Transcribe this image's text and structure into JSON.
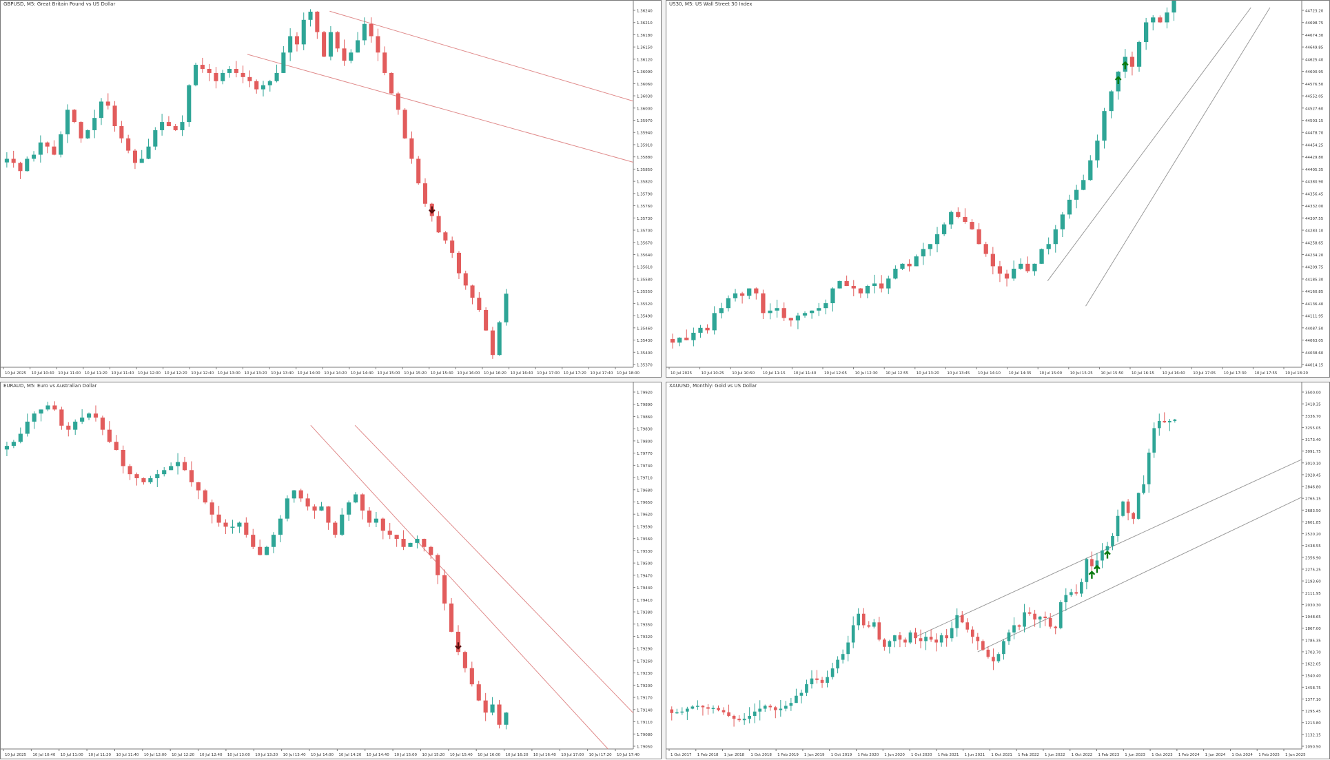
{
  "colors": {
    "bull": "#2ea596",
    "bear": "#e25c5c",
    "wick_bull": "#2ea596",
    "wick_bear": "#e25c5c",
    "channel_bear": "#e08b8b",
    "channel_bull": "#9a9a9a",
    "arrow_down": "#5a1010",
    "arrow_up": "#0a7a10",
    "axis_text": "#333333",
    "border": "#7a7a7a"
  },
  "chart_data": [
    {
      "type": "candlestick",
      "title": "GBPUSD, M5: Great Britain Pound vs US Dollar",
      "symbol": "GBPUSD",
      "timeframe": "M5",
      "ylim": [
        1.3536,
        1.3624
      ],
      "yticks": [
        "1.36240",
        "1.36210",
        "1.36180",
        "1.36150",
        "1.36120",
        "1.36090",
        "1.36060",
        "1.36030",
        "1.36000",
        "1.35970",
        "1.35940",
        "1.35910",
        "1.35880",
        "1.35850",
        "1.35820",
        "1.35790",
        "1.35760",
        "1.35730",
        "1.35700",
        "1.35670",
        "1.35640",
        "1.35610",
        "1.35580",
        "1.35550",
        "1.35520",
        "1.35490",
        "1.35460",
        "1.35430",
        "1.35400",
        "1.35370"
      ],
      "xticks": [
        "10 Jul 2025",
        "10 Jul 10:40",
        "10 Jul 11:00",
        "10 Jul 11:20",
        "10 Jul 11:40",
        "10 Jul 12:00",
        "10 Jul 12:20",
        "10 Jul 12:40",
        "10 Jul 13:00",
        "10 Jul 13:20",
        "10 Jul 13:40",
        "10 Jul 14:00",
        "10 Jul 14:20",
        "10 Jul 14:40",
        "10 Jul 15:00",
        "10 Jul 15:20",
        "10 Jul 15:40",
        "10 Jul 16:00",
        "10 Jul 16:20",
        "10 Jul 16:40",
        "10 Jul 17:00",
        "10 Jul 17:20",
        "10 Jul 17:40",
        "10 Jul 18:00"
      ],
      "trend": "down",
      "closes": [
        1.3587,
        1.3586,
        1.3584,
        1.3587,
        1.3588,
        1.3591,
        1.359,
        1.3588,
        1.3593,
        1.3599,
        1.3596,
        1.3592,
        1.3594,
        1.3597,
        1.3601,
        1.36,
        1.3595,
        1.3592,
        1.3589,
        1.3586,
        1.3587,
        1.359,
        1.3594,
        1.3596,
        1.3595,
        1.3594,
        1.3596,
        1.3605,
        1.361,
        1.3609,
        1.3608,
        1.3606,
        1.3608,
        1.3609,
        1.3608,
        1.3607,
        1.3606,
        1.3604,
        1.3605,
        1.3606,
        1.3608,
        1.3613,
        1.3617,
        1.3615,
        1.3621,
        1.3623,
        1.3618,
        1.3612,
        1.3618,
        1.3614,
        1.3611,
        1.3613,
        1.3616,
        1.362,
        1.3617,
        1.3613,
        1.3608,
        1.3603,
        1.3599,
        1.3592,
        1.3587,
        1.3581,
        1.3576,
        1.3573,
        1.3569,
        1.3567,
        1.3564,
        1.3559,
        1.3556,
        1.3553,
        1.355,
        1.3545,
        1.3539,
        1.3547,
        1.3554
      ],
      "channel": {
        "upper": [
          [
            0.52,
            0.01
          ],
          [
            1.0,
            0.26
          ]
        ],
        "lower": [
          [
            0.39,
            0.13
          ],
          [
            1.0,
            0.43
          ]
        ]
      },
      "arrows": [
        {
          "type": "down",
          "index": 63
        }
      ]
    },
    {
      "type": "candlestick",
      "title": "US30, M5: US Wall Street 30 Index",
      "symbol": "US30",
      "timeframe": "M5",
      "ylim": [
        44000,
        44730
      ],
      "yticks": [
        "44723.20",
        "44698.75",
        "44674.30",
        "44649.85",
        "44625.40",
        "44600.95",
        "44576.50",
        "44552.05",
        "44527.60",
        "44503.15",
        "44478.70",
        "44454.25",
        "44429.80",
        "44405.35",
        "44380.90",
        "44356.45",
        "44332.00",
        "44307.55",
        "44283.10",
        "44258.65",
        "44234.20",
        "44209.75",
        "44185.30",
        "44160.85",
        "44136.40",
        "44111.95",
        "44087.50",
        "44063.05",
        "44038.60",
        "44014.15"
      ],
      "xticks": [
        "10 Jul 2025",
        "10 Jul 10:25",
        "10 Jul 10:50",
        "10 Jul 11:15",
        "10 Jul 11:40",
        "10 Jul 12:05",
        "10 Jul 12:30",
        "10 Jul 12:55",
        "10 Jul 13:20",
        "10 Jul 13:45",
        "10 Jul 14:10",
        "10 Jul 14:35",
        "10 Jul 15:00",
        "10 Jul 15:25",
        "10 Jul 15:50",
        "10 Jul 16:15",
        "10 Jul 16:40",
        "10 Jul 17:05",
        "10 Jul 17:30",
        "10 Jul 17:55",
        "10 Jul 18:20"
      ],
      "trend": "up",
      "closes": [
        44050,
        44060,
        44055,
        44070,
        44080,
        44075,
        44110,
        44120,
        44140,
        44150,
        44145,
        44160,
        44150,
        44110,
        44115,
        44120,
        44100,
        44095,
        44105,
        44110,
        44115,
        44120,
        44130,
        44160,
        44175,
        44165,
        44160,
        44150,
        44165,
        44170,
        44160,
        44180,
        44200,
        44210,
        44205,
        44225,
        44240,
        44250,
        44270,
        44290,
        44315,
        44305,
        44295,
        44280,
        44250,
        44230,
        44205,
        44190,
        44180,
        44200,
        44210,
        44195,
        44210,
        44240,
        44250,
        44280,
        44310,
        44340,
        44360,
        44380,
        44420,
        44460,
        44520,
        44560,
        44600,
        44630,
        44610,
        44660,
        44700,
        44710,
        44700,
        44720,
        44745
      ],
      "channel": {
        "upper": [
          [
            0.6,
            0.76
          ],
          [
            0.92,
            0.0
          ]
        ],
        "lower": [
          [
            0.66,
            0.83
          ],
          [
            0.95,
            0.0
          ]
        ]
      },
      "arrows": [
        {
          "type": "up",
          "index": 64
        },
        {
          "type": "up",
          "index": 65
        }
      ]
    },
    {
      "type": "candlestick",
      "title": "EURAUD, M5: Euro vs Australian Dollar",
      "symbol": "EURAUD",
      "timeframe": "M5",
      "ylim": [
        1.7904,
        1.7993
      ],
      "yticks": [
        "1.79920",
        "1.79890",
        "1.79860",
        "1.79830",
        "1.79800",
        "1.79770",
        "1.79740",
        "1.79710",
        "1.79680",
        "1.79650",
        "1.79620",
        "1.79590",
        "1.79560",
        "1.79530",
        "1.79500",
        "1.79470",
        "1.79440",
        "1.79410",
        "1.79380",
        "1.79350",
        "1.79320",
        "1.79290",
        "1.79260",
        "1.79230",
        "1.79200",
        "1.79170",
        "1.79140",
        "1.79110",
        "1.79080",
        "1.79050"
      ],
      "xticks": [
        "10 Jul 2025",
        "10 Jul 10:40",
        "10 Jul 11:00",
        "10 Jul 11:20",
        "10 Jul 11:40",
        "10 Jul 12:00",
        "10 Jul 12:20",
        "10 Jul 12:40",
        "10 Jul 13:00",
        "10 Jul 13:20",
        "10 Jul 13:40",
        "10 Jul 14:00",
        "10 Jul 14:20",
        "10 Jul 14:40",
        "10 Jul 15:00",
        "10 Jul 15:20",
        "10 Jul 15:40",
        "10 Jul 16:00",
        "10 Jul 16:20",
        "10 Jul 16:40",
        "10 Jul 17:00",
        "10 Jul 17:20",
        "10 Jul 17:40"
      ],
      "trend": "down",
      "closes": [
        1.7979,
        1.798,
        1.7982,
        1.7985,
        1.7987,
        1.7988,
        1.7989,
        1.7988,
        1.7984,
        1.7983,
        1.7985,
        1.7986,
        1.7987,
        1.7986,
        1.7983,
        1.798,
        1.7978,
        1.7974,
        1.7972,
        1.7971,
        1.797,
        1.7971,
        1.7972,
        1.7973,
        1.7974,
        1.7975,
        1.7973,
        1.797,
        1.7968,
        1.7965,
        1.7962,
        1.796,
        1.7959,
        1.7959,
        1.796,
        1.7957,
        1.7954,
        1.7952,
        1.7954,
        1.7957,
        1.7961,
        1.7966,
        1.7968,
        1.7966,
        1.7964,
        1.7963,
        1.7964,
        1.796,
        1.7957,
        1.7962,
        1.7965,
        1.7967,
        1.7963,
        1.796,
        1.7961,
        1.7958,
        1.7957,
        1.7956,
        1.7954,
        1.7955,
        1.7956,
        1.7954,
        1.7952,
        1.7947,
        1.794,
        1.7933,
        1.7928,
        1.7924,
        1.792,
        1.7916,
        1.7913,
        1.7915,
        1.791,
        1.7913
      ],
      "channel": {
        "upper": [
          [
            0.56,
            0.1
          ],
          [
            1.0,
            0.9
          ]
        ],
        "lower": [
          [
            0.49,
            0.1
          ],
          [
            0.96,
            1.0
          ]
        ]
      },
      "arrows": [
        {
          "type": "down",
          "index": 66
        }
      ]
    },
    {
      "type": "candlestick",
      "title": "XAUUSD, Monthly: Gold vs US Dollar",
      "symbol": "XAUUSD",
      "timeframe": "Monthly",
      "ylim": [
        1020,
        3520
      ],
      "yticks": [
        "3500.00",
        "3418.35",
        "3336.70",
        "3255.05",
        "3173.40",
        "3091.75",
        "3010.10",
        "2928.45",
        "2846.80",
        "2765.15",
        "2683.50",
        "2601.85",
        "2520.20",
        "2438.55",
        "2356.90",
        "2275.25",
        "2193.60",
        "2111.95",
        "2030.30",
        "1948.65",
        "1867.00",
        "1785.35",
        "1703.70",
        "1622.05",
        "1540.40",
        "1458.75",
        "1377.10",
        "1295.45",
        "1213.80",
        "1132.15",
        "1050.50"
      ],
      "xticks": [
        "1 Oct 2017",
        "1 Feb 2018",
        "1 Jun 2018",
        "1 Oct 2018",
        "1 Feb 2019",
        "1 Jun 2019",
        "1 Oct 2019",
        "1 Feb 2020",
        "1 Jun 2020",
        "1 Oct 2020",
        "1 Feb 2021",
        "1 Jun 2021",
        "1 Oct 2021",
        "1 Feb 2022",
        "1 Jun 2022",
        "1 Oct 2022",
        "1 Feb 2023",
        "1 Jun 2023",
        "1 Oct 2023",
        "1 Feb 2024",
        "1 Jun 2024",
        "1 Oct 2024",
        "1 Feb 2025",
        "1 Jun 2025"
      ],
      "trend": "up",
      "closes": [
        1270,
        1275,
        1280,
        1300,
        1315,
        1320,
        1310,
        1300,
        1305,
        1290,
        1275,
        1250,
        1230,
        1220,
        1230,
        1250,
        1280,
        1300,
        1320,
        1310,
        1290,
        1300,
        1320,
        1340,
        1390,
        1410,
        1470,
        1510,
        1500,
        1480,
        1520,
        1580,
        1640,
        1680,
        1760,
        1880,
        1960,
        1880,
        1870,
        1900,
        1780,
        1730,
        1770,
        1810,
        1780,
        1760,
        1830,
        1790,
        1770,
        1800,
        1780,
        1760,
        1810,
        1790,
        1860,
        1950,
        1900,
        1850,
        1800,
        1770,
        1710,
        1660,
        1630,
        1680,
        1770,
        1830,
        1880,
        1870,
        1970,
        1960,
        1920,
        1940,
        1930,
        1870,
        1860,
        2040,
        2090,
        2110,
        2100,
        2180,
        2340,
        2290,
        2330,
        2400,
        2430,
        2500,
        2640,
        2740,
        2660,
        2620,
        2800,
        2860,
        3080,
        3250,
        3300,
        3290,
        3300,
        3310
      ],
      "channel": {
        "upper": [
          [
            0.39,
            0.69
          ],
          [
            1.0,
            0.195
          ]
        ],
        "lower": [
          [
            0.49,
            0.73
          ],
          [
            1.0,
            0.3
          ]
        ]
      },
      "arrows": [
        {
          "type": "up",
          "index": 81
        },
        {
          "type": "up",
          "index": 82
        },
        {
          "type": "up",
          "index": 84
        }
      ]
    }
  ]
}
